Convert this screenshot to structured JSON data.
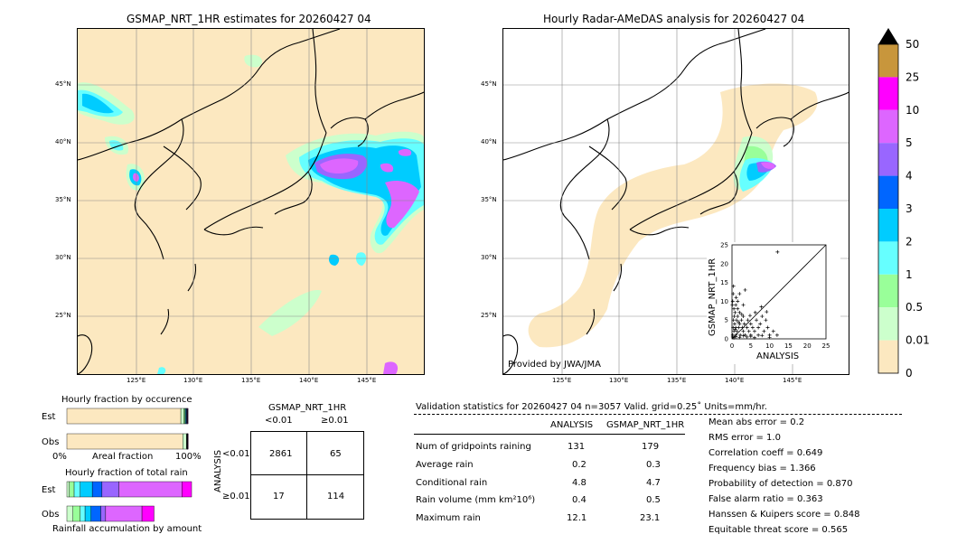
{
  "left_map": {
    "title": "GSMAP_NRT_1HR estimates for 20260427 04",
    "lat_labels": [
      "45°N",
      "40°N",
      "35°N",
      "30°N",
      "25°N"
    ],
    "lon_labels": [
      "125°E",
      "130°E",
      "135°E",
      "140°E",
      "145°E"
    ]
  },
  "right_map": {
    "title": "Hourly Radar-AMeDAS analysis for 20260427 04",
    "lat_labels": [
      "45°N",
      "40°N",
      "35°N",
      "30°N",
      "25°N"
    ],
    "lon_labels": [
      "125°E",
      "130°E",
      "135°E",
      "140°E",
      "145°E"
    ],
    "provider": "Provided by JWA/JMA"
  },
  "colorbar": {
    "labels": [
      "50",
      "25",
      "10",
      "5",
      "4",
      "3",
      "2",
      "1",
      "0.5",
      "0.01",
      "0"
    ],
    "colors": [
      "#c8963c",
      "#ff00ff",
      "#dd66ff",
      "#9966ff",
      "#0066ff",
      "#00ccff",
      "#66ffff",
      "#99ff99",
      "#ccffcc",
      "#fce8c0"
    ]
  },
  "chart_data": [
    {
      "type": "scatter",
      "title": "",
      "xlabel": "ANALYSIS",
      "ylabel": "GSMAP_NRT_1HR",
      "xlim": [
        0,
        25
      ],
      "ylim": [
        0,
        25
      ],
      "ticks": [
        "0",
        "5",
        "10",
        "15",
        "20",
        "25"
      ],
      "points": [
        [
          0.2,
          1
        ],
        [
          0.3,
          3
        ],
        [
          0.4,
          5
        ],
        [
          0.5,
          2
        ],
        [
          0.6,
          6
        ],
        [
          0.7,
          4
        ],
        [
          0.8,
          7
        ],
        [
          1,
          1
        ],
        [
          1,
          3
        ],
        [
          1.2,
          5
        ],
        [
          1.3,
          2
        ],
        [
          1.5,
          6
        ],
        [
          1.5,
          8
        ],
        [
          1.8,
          3
        ],
        [
          2,
          4
        ],
        [
          2,
          7
        ],
        [
          2.2,
          1
        ],
        [
          2.5,
          5
        ],
        [
          2.8,
          3
        ],
        [
          3,
          6
        ],
        [
          3,
          2
        ],
        [
          3.3,
          4
        ],
        [
          3.5,
          1
        ],
        [
          4,
          3
        ],
        [
          4.2,
          5
        ],
        [
          4.5,
          2
        ],
        [
          5,
          4
        ],
        [
          5,
          1
        ],
        [
          5.5,
          3
        ],
        [
          6,
          2
        ],
        [
          6.5,
          5
        ],
        [
          7,
          3
        ],
        [
          7,
          1
        ],
        [
          7.5,
          4
        ],
        [
          8,
          6
        ],
        [
          8.5,
          2
        ],
        [
          9,
          5
        ],
        [
          9.5,
          3
        ],
        [
          10,
          1
        ],
        [
          11,
          2
        ],
        [
          12,
          1
        ],
        [
          0.1,
          9
        ],
        [
          0.2,
          10
        ],
        [
          0.3,
          12
        ],
        [
          0.5,
          8
        ],
        [
          1,
          9
        ],
        [
          1.5,
          10
        ],
        [
          2,
          12
        ],
        [
          3,
          9
        ],
        [
          3.5,
          13
        ],
        [
          0.2,
          0.5
        ],
        [
          0.5,
          0.3
        ],
        [
          1,
          0.6
        ],
        [
          2,
          0.4
        ],
        [
          3,
          0.8
        ],
        [
          4,
          0.5
        ],
        [
          5,
          0.7
        ],
        [
          6,
          0.3
        ],
        [
          8,
          0.9
        ],
        [
          10,
          0.4
        ],
        [
          0.8,
          2.5
        ],
        [
          1.7,
          4.5
        ],
        [
          2.6,
          6.5
        ],
        [
          4.8,
          6.2
        ],
        [
          6.2,
          7
        ],
        [
          7.8,
          8.5
        ],
        [
          9.2,
          7.2
        ],
        [
          0.4,
          14
        ],
        [
          12.1,
          23.1
        ],
        [
          1.1,
          11
        ]
      ]
    },
    {
      "type": "bar",
      "title": "Hourly fraction by occurence",
      "categories": [
        "Est",
        "Obs"
      ],
      "xlabel": "Areal fraction",
      "xticks": [
        "0%",
        "100%"
      ],
      "series": [
        {
          "color": "#fce8c0",
          "values": [
            0.941,
            0.957
          ]
        },
        {
          "color": "#ccffcc",
          "values": [
            0.024,
            0.03
          ]
        },
        {
          "color": "#99ff99",
          "values": [
            0.01,
            0.004
          ]
        },
        {
          "color": "#66ffff",
          "values": [
            0.006,
            0.002
          ]
        },
        {
          "color": "#00ccff",
          "values": [
            0.005,
            0.002
          ]
        },
        {
          "color": "#0066ff",
          "values": [
            0.004,
            0.001
          ]
        },
        {
          "color": "#9966ff",
          "values": [
            0.004,
            0.001
          ]
        },
        {
          "color": "#dd66ff",
          "values": [
            0.004,
            0.002
          ]
        },
        {
          "color": "#ff00ff",
          "values": [
            0.002,
            0.001
          ]
        }
      ]
    },
    {
      "type": "bar",
      "title": "Hourly fraction of total rain",
      "categories": [
        "Est",
        "Obs"
      ],
      "xlabel": "Rainfall accumulation by amount",
      "series": [
        {
          "color": "#ccffcc",
          "values": [
            0.02,
            0.05
          ]
        },
        {
          "color": "#99ff99",
          "values": [
            0.04,
            0.06
          ]
        },
        {
          "color": "#66ffff",
          "values": [
            0.05,
            0.04
          ]
        },
        {
          "color": "#00ccff",
          "values": [
            0.1,
            0.05
          ]
        },
        {
          "color": "#0066ff",
          "values": [
            0.08,
            0.08
          ]
        },
        {
          "color": "#9966ff",
          "values": [
            0.14,
            0.04
          ]
        },
        {
          "color": "#dd66ff",
          "values": [
            0.52,
            0.3
          ]
        },
        {
          "color": "#ff00ff",
          "values": [
            0.08,
            0.1
          ]
        }
      ]
    }
  ],
  "contingency": {
    "title": "GSMAP_NRT_1HR",
    "col_labels": [
      "<0.01",
      "≥0.01"
    ],
    "row_title": "ANALYSIS",
    "row_labels": [
      "<0.01",
      "≥0.01"
    ],
    "cells": [
      "2861",
      "65",
      "17",
      "114"
    ]
  },
  "validation": {
    "header": "Validation statistics for 20260427 04  n=3057 Valid. grid=0.25˚ Units=mm/hr.",
    "col_analysis": "ANALYSIS",
    "col_gsmap": "GSMAP_NRT_1HR",
    "rows": [
      {
        "label": "Num of gridpoints raining",
        "analysis": "131",
        "gsmap": "179"
      },
      {
        "label": "Average rain",
        "analysis": "0.2",
        "gsmap": "0.3"
      },
      {
        "label": "Conditional rain",
        "analysis": "4.8",
        "gsmap": "4.7"
      },
      {
        "label": "Rain volume (mm km²10⁶)",
        "analysis": "0.4",
        "gsmap": "0.5"
      },
      {
        "label": "Maximum rain",
        "analysis": "12.1",
        "gsmap": "23.1"
      }
    ],
    "scores": [
      "Mean abs error =    0.2",
      "RMS error =    1.0",
      "Correlation coeff =  0.649",
      "Frequency bias =  1.366",
      "Probability of detection =  0.870",
      "False alarm ratio =  0.363",
      "Hanssen & Kuipers score =  0.848",
      "Equitable threat score =  0.565"
    ]
  }
}
